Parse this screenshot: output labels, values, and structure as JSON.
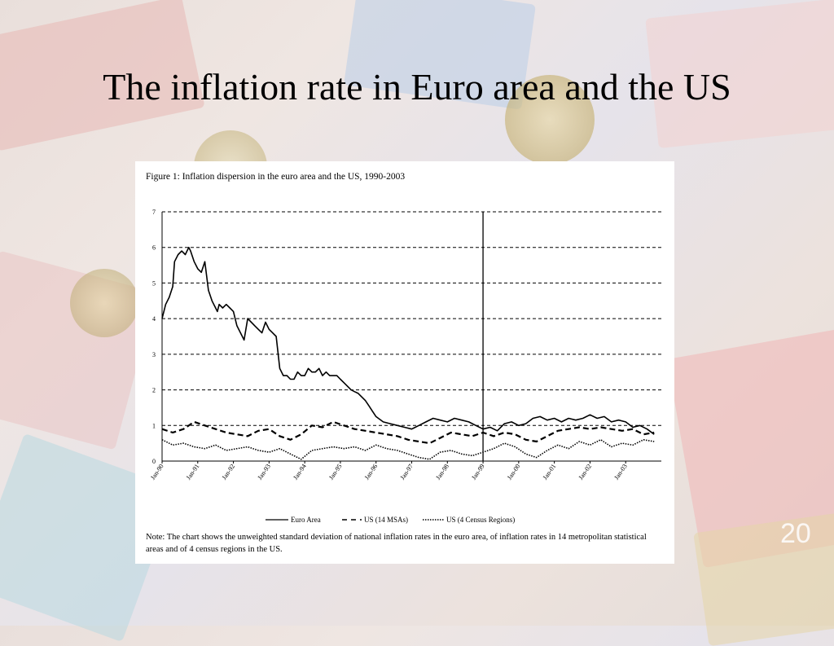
{
  "slide": {
    "title": "The inflation rate in Euro area and the US",
    "page_number": "20"
  },
  "colors": {
    "line": "#000000",
    "background_panel": "#ffffff"
  },
  "chart_data": {
    "type": "line",
    "title": "Figure 1: Inflation dispersion in the euro area and the US, 1990-2003",
    "xlabel": "",
    "ylabel": "",
    "x_ticks": [
      "Jan-90",
      "Jan-91",
      "Jan-92",
      "Jan-93",
      "Jan-94",
      "Jan-95",
      "Jan-96",
      "Jan-97",
      "Jan-98",
      "Jan-99",
      "Jan-00",
      "Jan-01",
      "Jan-02",
      "Jan-03"
    ],
    "y_ticks": [
      0,
      1,
      2,
      3,
      4,
      5,
      6,
      7
    ],
    "ylim": [
      0,
      7
    ],
    "x_range": [
      1990.0,
      2004.0
    ],
    "grid": "horizontal dashed",
    "vertical_marker_x": 1999.0,
    "legend_position": "bottom",
    "note": "Note: The chart shows the unweighted standard deviation of national inflation rates in the euro area, of inflation rates in 14 metropolitan statistical areas and of 4 census regions in the US.",
    "series": [
      {
        "name": "Euro Area",
        "style": "solid",
        "x": [
          1990.0,
          1990.1,
          1990.2,
          1990.3,
          1990.35,
          1990.45,
          1990.55,
          1990.65,
          1990.75,
          1990.8,
          1990.9,
          1991.0,
          1991.1,
          1991.2,
          1991.3,
          1991.4,
          1991.5,
          1991.55,
          1991.6,
          1991.7,
          1991.8,
          1991.9,
          1992.0,
          1992.1,
          1992.2,
          1992.3,
          1992.4,
          1992.5,
          1992.6,
          1992.7,
          1992.8,
          1992.9,
          1993.0,
          1993.1,
          1993.2,
          1993.3,
          1993.4,
          1993.5,
          1993.6,
          1993.7,
          1993.8,
          1993.9,
          1994.0,
          1994.1,
          1994.2,
          1994.3,
          1994.4,
          1994.5,
          1994.6,
          1994.7,
          1994.8,
          1994.9,
          1995.0,
          1995.1,
          1995.2,
          1995.3,
          1995.4,
          1995.5,
          1995.6,
          1995.7,
          1995.8,
          1995.9,
          1996.0,
          1996.2,
          1996.4,
          1996.6,
          1996.8,
          1997.0,
          1997.2,
          1997.4,
          1997.6,
          1997.8,
          1998.0,
          1998.2,
          1998.4,
          1998.6,
          1998.8,
          1999.0,
          1999.2,
          1999.4,
          1999.6,
          1999.8,
          2000.0,
          2000.2,
          2000.4,
          2000.6,
          2000.8,
          2001.0,
          2001.2,
          2001.4,
          2001.6,
          2001.8,
          2002.0,
          2002.2,
          2002.4,
          2002.6,
          2002.8,
          2003.0,
          2003.2,
          2003.4,
          2003.6,
          2003.8
        ],
        "values": [
          4.0,
          4.4,
          4.6,
          4.9,
          5.6,
          5.8,
          5.9,
          5.8,
          6.0,
          5.9,
          5.6,
          5.4,
          5.3,
          5.6,
          4.8,
          4.5,
          4.3,
          4.2,
          4.4,
          4.3,
          4.4,
          4.3,
          4.2,
          3.8,
          3.6,
          3.4,
          4.0,
          3.9,
          3.8,
          3.7,
          3.6,
          3.9,
          3.7,
          3.6,
          3.5,
          2.6,
          2.4,
          2.4,
          2.3,
          2.3,
          2.5,
          2.4,
          2.4,
          2.6,
          2.5,
          2.5,
          2.6,
          2.4,
          2.5,
          2.4,
          2.4,
          2.4,
          2.3,
          2.2,
          2.1,
          2.0,
          1.95,
          1.9,
          1.8,
          1.7,
          1.55,
          1.4,
          1.25,
          1.1,
          1.05,
          1.0,
          0.95,
          0.9,
          1.0,
          1.1,
          1.2,
          1.15,
          1.1,
          1.2,
          1.15,
          1.1,
          1.0,
          0.9,
          0.95,
          0.85,
          1.05,
          1.1,
          1.0,
          1.05,
          1.2,
          1.25,
          1.15,
          1.2,
          1.1,
          1.2,
          1.15,
          1.2,
          1.3,
          1.2,
          1.25,
          1.1,
          1.15,
          1.1,
          0.95,
          1.0,
          0.9,
          0.75
        ]
      },
      {
        "name": "US (14 MSAs)",
        "style": "dashed",
        "x": [
          1990.0,
          1990.3,
          1990.6,
          1990.9,
          1991.2,
          1991.5,
          1991.8,
          1992.1,
          1992.4,
          1992.7,
          1993.0,
          1993.3,
          1993.6,
          1993.9,
          1994.2,
          1994.5,
          1994.8,
          1995.1,
          1995.4,
          1995.7,
          1996.0,
          1996.3,
          1996.6,
          1996.9,
          1997.2,
          1997.5,
          1997.8,
          1998.1,
          1998.4,
          1998.7,
          1999.0,
          1999.3,
          1999.6,
          1999.9,
          2000.2,
          2000.5,
          2000.8,
          2001.1,
          2001.4,
          2001.7,
          2002.0,
          2002.3,
          2002.6,
          2002.9,
          2003.2,
          2003.5,
          2003.8
        ],
        "values": [
          0.9,
          0.8,
          0.9,
          1.1,
          1.0,
          0.9,
          0.8,
          0.75,
          0.7,
          0.85,
          0.9,
          0.7,
          0.6,
          0.75,
          1.0,
          0.95,
          1.1,
          1.0,
          0.9,
          0.85,
          0.8,
          0.75,
          0.7,
          0.6,
          0.55,
          0.5,
          0.65,
          0.8,
          0.75,
          0.7,
          0.8,
          0.7,
          0.8,
          0.75,
          0.6,
          0.55,
          0.7,
          0.85,
          0.9,
          0.95,
          0.9,
          0.95,
          0.9,
          0.85,
          0.9,
          0.75,
          0.8
        ]
      },
      {
        "name": "US (4 Census Regions)",
        "style": "dotted",
        "x": [
          1990.0,
          1990.3,
          1990.6,
          1990.9,
          1991.2,
          1991.5,
          1991.8,
          1992.1,
          1992.4,
          1992.7,
          1993.0,
          1993.3,
          1993.6,
          1993.9,
          1994.2,
          1994.5,
          1994.8,
          1995.1,
          1995.4,
          1995.7,
          1996.0,
          1996.3,
          1996.6,
          1996.9,
          1997.2,
          1997.5,
          1997.8,
          1998.1,
          1998.4,
          1998.7,
          1999.0,
          1999.3,
          1999.6,
          1999.9,
          2000.2,
          2000.5,
          2000.8,
          2001.1,
          2001.4,
          2001.7,
          2002.0,
          2002.3,
          2002.6,
          2002.9,
          2003.2,
          2003.5,
          2003.8
        ],
        "values": [
          0.6,
          0.45,
          0.5,
          0.4,
          0.35,
          0.45,
          0.3,
          0.35,
          0.4,
          0.3,
          0.25,
          0.35,
          0.2,
          0.05,
          0.3,
          0.35,
          0.4,
          0.35,
          0.4,
          0.3,
          0.45,
          0.35,
          0.3,
          0.2,
          0.1,
          0.05,
          0.25,
          0.3,
          0.2,
          0.15,
          0.25,
          0.35,
          0.5,
          0.4,
          0.2,
          0.1,
          0.3,
          0.45,
          0.35,
          0.55,
          0.45,
          0.6,
          0.4,
          0.5,
          0.45,
          0.6,
          0.55
        ]
      }
    ]
  }
}
